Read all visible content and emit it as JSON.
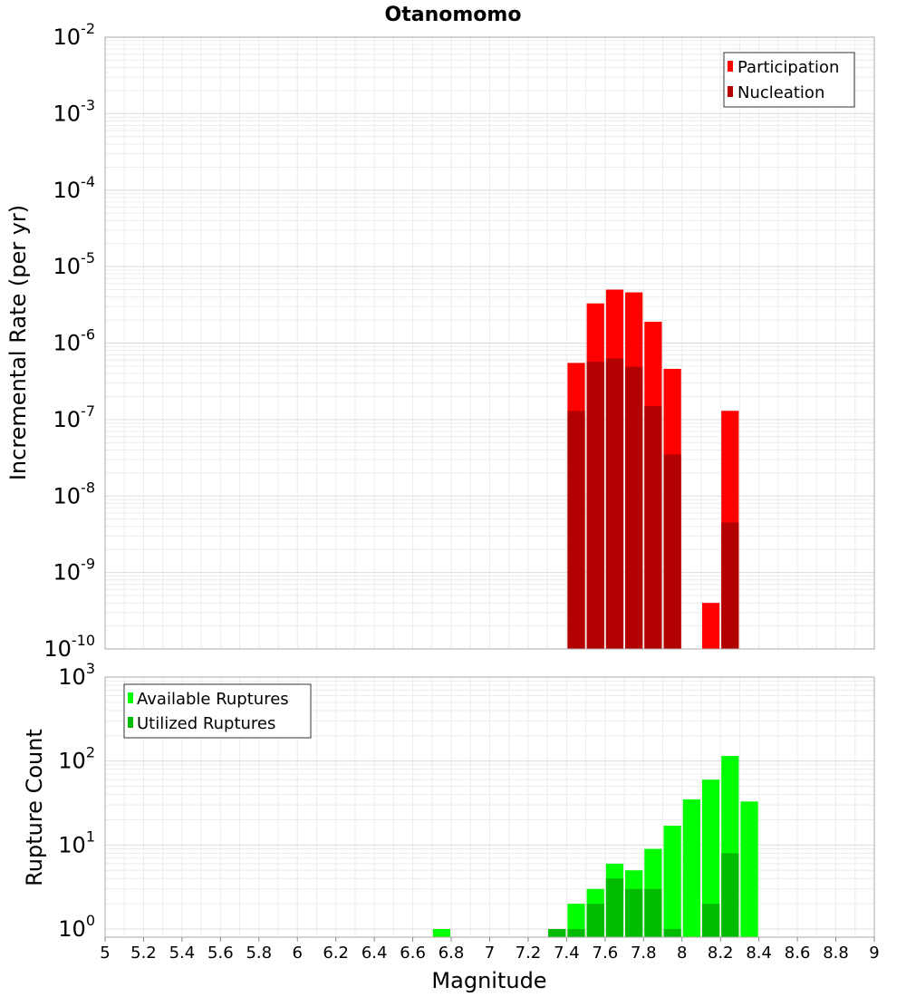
{
  "chart_data": [
    {
      "type": "bar",
      "title": "Otanomomo",
      "ylabel": "Incremental Rate (per yr)",
      "xlabel": "",
      "scale_y": "log",
      "ylim_exp": [
        -10,
        -2
      ],
      "xlim": [
        5,
        9
      ],
      "bin_width": 0.1,
      "grid": true,
      "legend_position": "top-right",
      "series": [
        {
          "name": "Participation",
          "color": "#ff0000",
          "x": [
            7.45,
            7.55,
            7.65,
            7.75,
            7.85,
            7.95,
            8.15,
            8.25
          ],
          "values": [
            5.5e-07,
            3.3e-06,
            5e-06,
            4.6e-06,
            1.9e-06,
            4.6e-07,
            4e-10,
            1.3e-07
          ]
        },
        {
          "name": "Nucleation",
          "color": "#b30000",
          "x": [
            7.45,
            7.55,
            7.65,
            7.75,
            7.85,
            7.95,
            8.25
          ],
          "values": [
            1.3e-07,
            5.7e-07,
            6.3e-07,
            4.9e-07,
            1.5e-07,
            3.5e-08,
            4.5e-09
          ]
        }
      ],
      "y_ticks": [
        {
          "base": "10",
          "exp": "-10"
        },
        {
          "base": "10",
          "exp": "-9"
        },
        {
          "base": "10",
          "exp": "-8"
        },
        {
          "base": "10",
          "exp": "-7"
        },
        {
          "base": "10",
          "exp": "-6"
        },
        {
          "base": "10",
          "exp": "-5"
        },
        {
          "base": "10",
          "exp": "-4"
        },
        {
          "base": "10",
          "exp": "-3"
        },
        {
          "base": "10",
          "exp": "-2"
        }
      ]
    },
    {
      "type": "bar",
      "title": "",
      "ylabel": "Rupture Count",
      "xlabel": "Magnitude",
      "scale_y": "log",
      "ylim": [
        0.8,
        1000
      ],
      "xlim": [
        5,
        9
      ],
      "bin_width": 0.1,
      "grid": true,
      "legend_position": "top-left",
      "series": [
        {
          "name": "Available Ruptures",
          "color": "#00ff00",
          "x": [
            6.75,
            7.35,
            7.45,
            7.55,
            7.65,
            7.75,
            7.85,
            7.95,
            8.05,
            8.15,
            8.25,
            8.35
          ],
          "values": [
            1,
            1,
            2,
            3,
            6,
            5,
            9,
            17,
            35,
            60,
            115,
            33
          ]
        },
        {
          "name": "Utilized Ruptures",
          "color": "#00bb00",
          "x": [
            7.35,
            7.45,
            7.55,
            7.65,
            7.75,
            7.85,
            7.95,
            8.15,
            8.25
          ],
          "values": [
            1,
            1,
            2,
            4,
            3,
            3,
            1,
            2,
            8
          ]
        }
      ],
      "x_ticks": [
        "5",
        "5.2",
        "5.4",
        "5.6",
        "5.8",
        "6",
        "6.2",
        "6.4",
        "6.6",
        "6.8",
        "7",
        "7.2",
        "7.4",
        "7.6",
        "7.8",
        "8",
        "8.2",
        "8.4",
        "8.6",
        "8.8",
        "9"
      ],
      "y_ticks": [
        {
          "base": "10",
          "exp": "0"
        },
        {
          "base": "10",
          "exp": "1"
        },
        {
          "base": "10",
          "exp": "2"
        },
        {
          "base": "10",
          "exp": "3"
        }
      ]
    }
  ]
}
